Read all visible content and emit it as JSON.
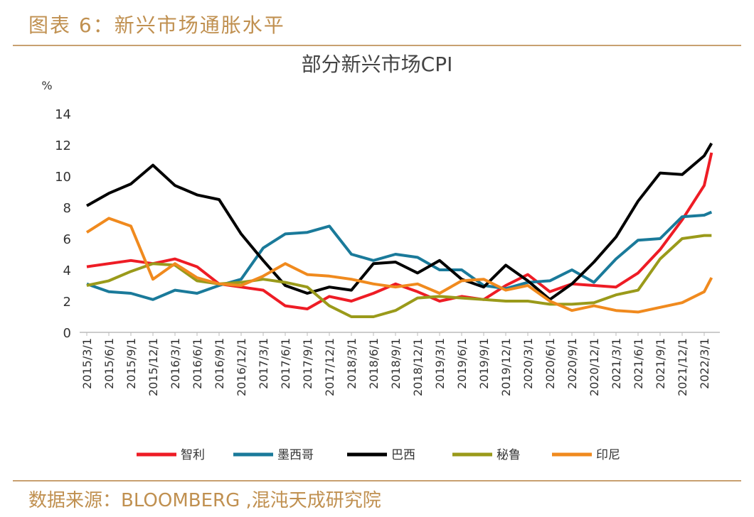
{
  "header": {
    "title": "图表 6：新兴市场通胀水平"
  },
  "footer": {
    "source": "数据来源：BLOOMBERG ,混沌天成研究院"
  },
  "chart_data": {
    "type": "line",
    "title": "部分新兴市场CPI",
    "y_label": "%",
    "categories": [
      "2015/3/1",
      "2015/6/1",
      "2015/9/1",
      "2015/12/1",
      "2016/3/1",
      "2016/6/1",
      "2016/9/1",
      "2016/12/1",
      "2017/3/1",
      "2017/6/1",
      "2017/9/1",
      "2017/12/1",
      "2018/3/1",
      "2018/6/1",
      "2018/9/1",
      "2018/12/1",
      "2019/3/1",
      "2019/6/1",
      "2019/9/1",
      "2019/12/1",
      "2020/3/1",
      "2020/6/1",
      "2020/9/1",
      "2020/12/1",
      "2021/3/1",
      "2021/6/1",
      "2021/9/1",
      "2021/12/1",
      "2022/3/1",
      null
    ],
    "series": [
      {
        "name": "智利",
        "color": "#ee1c25",
        "values": [
          4.2,
          4.4,
          4.6,
          4.4,
          4.7,
          4.2,
          3.1,
          2.9,
          2.7,
          1.7,
          1.5,
          2.3,
          2.0,
          2.5,
          3.1,
          2.6,
          2.0,
          2.3,
          2.1,
          3.0,
          3.7,
          2.6,
          3.1,
          3.0,
          2.9,
          3.8,
          5.3,
          7.2,
          9.4,
          11.5
        ]
      },
      {
        "name": "墨西哥",
        "color": "#1a7a9a",
        "values": [
          3.1,
          2.6,
          2.5,
          2.1,
          2.7,
          2.5,
          3.0,
          3.4,
          5.4,
          6.3,
          6.4,
          6.8,
          5.0,
          4.6,
          5.0,
          4.8,
          4.0,
          4.0,
          3.0,
          2.8,
          3.2,
          3.3,
          4.0,
          3.2,
          4.7,
          5.9,
          6.0,
          7.4,
          7.5,
          7.7
        ]
      },
      {
        "name": "巴西",
        "color": "#000000",
        "values": [
          8.1,
          8.9,
          9.5,
          10.7,
          9.4,
          8.8,
          8.5,
          6.3,
          4.6,
          3.0,
          2.5,
          2.9,
          2.7,
          4.4,
          4.5,
          3.8,
          4.6,
          3.4,
          2.9,
          4.3,
          3.3,
          2.1,
          3.1,
          4.5,
          6.1,
          8.4,
          10.2,
          10.1,
          11.3,
          12.1
        ]
      },
      {
        "name": "秘鲁",
        "color": "#9a9a1a",
        "values": [
          3.0,
          3.3,
          3.9,
          4.4,
          4.3,
          3.3,
          3.1,
          3.2,
          3.4,
          3.2,
          2.9,
          1.7,
          1.0,
          1.0,
          1.4,
          2.2,
          2.3,
          2.2,
          2.1,
          2.0,
          2.0,
          1.8,
          1.8,
          1.9,
          2.4,
          2.7,
          4.7,
          6.0,
          6.2,
          6.2
        ]
      },
      {
        "name": "印尼",
        "color": "#f08a1e",
        "values": [
          6.4,
          7.3,
          6.8,
          3.4,
          4.4,
          3.5,
          3.1,
          3.0,
          3.6,
          4.4,
          3.7,
          3.6,
          3.4,
          3.1,
          2.9,
          3.1,
          2.5,
          3.3,
          3.4,
          2.7,
          3.0,
          2.0,
          1.4,
          1.7,
          1.4,
          1.3,
          1.6,
          1.9,
          2.6,
          3.5
        ]
      }
    ],
    "ylim": [
      0,
      14
    ],
    "yticks": [
      0,
      2,
      4,
      6,
      8,
      10,
      12,
      14
    ],
    "legend": "bottom"
  }
}
